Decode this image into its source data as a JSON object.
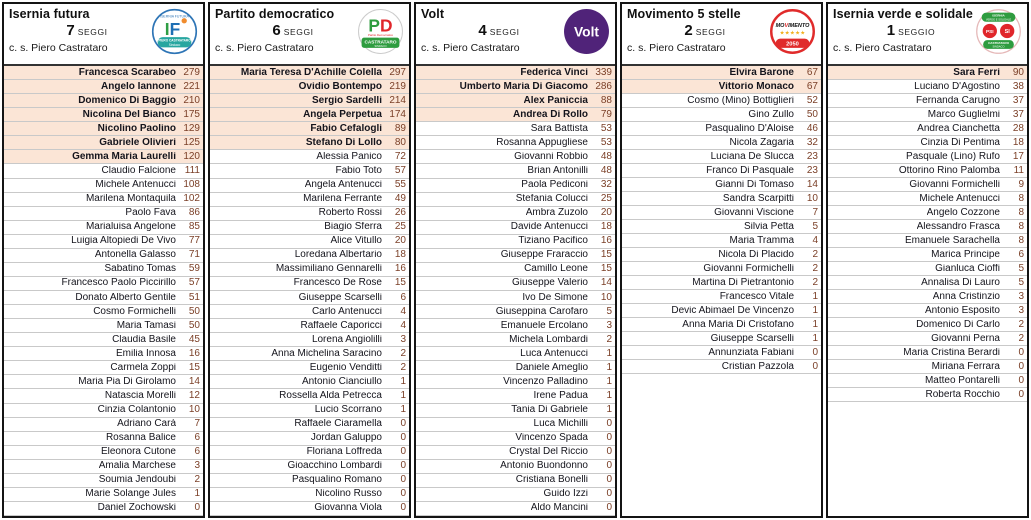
{
  "colors": {
    "elected_highlight": "#FBE5D6",
    "votes_text": "#7b4028",
    "table_border": "#141414",
    "row_separator": "#c9c9c9",
    "if_blue": "#2e75b6",
    "if_green": "#2f9e44",
    "if_teal_band": "#27a6a0",
    "pd_green": "#2e9c3f",
    "pd_red": "#e0262b",
    "volt_purple": "#502379",
    "m5s_red": "#e02b2b",
    "m5s_star_yellow": "#f2b01e",
    "ivs_green": "#2e9c3f",
    "ivs_red": "#e0262b"
  },
  "chart_data": {
    "type": "table",
    "tables": [
      {
        "name": "Isernia futura",
        "seats": "7",
        "seats_label": "SEGGI",
        "coalition": "c. s. Piero Castrataro",
        "elected": 7,
        "logo": {
          "arc_text": "ISERNIA FUTURA",
          "monogram_i": "I",
          "monogram_f": "F",
          "band_line1": "PIERO CASTRATARO",
          "band_line2": "Sindaco"
        },
        "candidates": [
          [
            "Francesca Scarabeo",
            279
          ],
          [
            "Angelo Iannone",
            221
          ],
          [
            "Domenico Di Baggio",
            210
          ],
          [
            "Nicolina Del Bianco",
            175
          ],
          [
            "Nicolino Paolino",
            129
          ],
          [
            "Gabriele Olivieri",
            125
          ],
          [
            "Gemma Maria Laurelli",
            120
          ],
          [
            "Claudio Falcione",
            111
          ],
          [
            "Michele Antenucci",
            108
          ],
          [
            "Marilena Montaquila",
            102
          ],
          [
            "Paolo Fava",
            86
          ],
          [
            "Marialuisa Angelone",
            85
          ],
          [
            "Luigia Altopiedi De Vivo",
            77
          ],
          [
            "Antonella Galasso",
            71
          ],
          [
            "Sabatino Tomas",
            59
          ],
          [
            "Francesco Paolo Piccirillo",
            57
          ],
          [
            "Donato Alberto Gentile",
            51
          ],
          [
            "Cosmo Formichelli",
            50
          ],
          [
            "Maria Tamasi",
            50
          ],
          [
            "Claudia Basile",
            45
          ],
          [
            "Emilia Innosa",
            16
          ],
          [
            "Carmela Zoppi",
            15
          ],
          [
            "Maria Pia Di Girolamo",
            14
          ],
          [
            "Natascia Morelli",
            12
          ],
          [
            "Cinzia Colantonio",
            10
          ],
          [
            "Adriano Carà",
            7
          ],
          [
            "Rosanna Balice",
            6
          ],
          [
            "Eleonora Cutone",
            6
          ],
          [
            "Amalia Marchese",
            3
          ],
          [
            "Soumia Jendoubi",
            2
          ],
          [
            "Marie Solange Jules",
            1
          ],
          [
            "Daniel Zochowski",
            0
          ]
        ]
      },
      {
        "name": "Partito democratico",
        "seats": "6",
        "seats_label": "SEGGI",
        "coalition": "c. s. Piero Castrataro",
        "elected": 6,
        "logo": {
          "p": "P",
          "d": "D",
          "subtitle": "Partito Democratico",
          "band_line1": "CASTRATARO",
          "band_line2": "SINDACO"
        },
        "candidates": [
          [
            "Maria Teresa D'Achille Colella",
            297
          ],
          [
            "Ovidio Bontempo",
            219
          ],
          [
            "Sergio Sardelli",
            214
          ],
          [
            "Angela Perpetua",
            174
          ],
          [
            "Fabio Cefalogli",
            89
          ],
          [
            "Stefano Di Lollo",
            80
          ],
          [
            "Alessia Panico",
            72
          ],
          [
            "Fabio Toto",
            57
          ],
          [
            "Angela Antenucci",
            55
          ],
          [
            "Marilena Ferrante",
            49
          ],
          [
            "Roberto Rossi",
            26
          ],
          [
            "Biagio Sferra",
            25
          ],
          [
            "Alice Vitullo",
            20
          ],
          [
            "Loredana Albertario",
            18
          ],
          [
            "Massimiliano Gennarelli",
            16
          ],
          [
            "Francesco De Rose",
            15
          ],
          [
            "Giuseppe Scarselli",
            6
          ],
          [
            "Carlo Antenucci",
            4
          ],
          [
            "Raffaele Caporicci",
            4
          ],
          [
            "Lorena Angiolilli",
            3
          ],
          [
            "Anna Michelina Saracino",
            2
          ],
          [
            "Eugenio Venditti",
            2
          ],
          [
            "Antonio Cianciullo",
            1
          ],
          [
            "Rossella Alda Petrecca",
            1
          ],
          [
            "Lucio Scorrano",
            1
          ],
          [
            "Raffaele Ciaramella",
            0
          ],
          [
            "Jordan Galuppo",
            0
          ],
          [
            "Floriana Loffreda",
            0
          ],
          [
            "Gioacchino Lombardi",
            0
          ],
          [
            "Pasqualino Romano",
            0
          ],
          [
            "Nicolino Russo",
            0
          ],
          [
            "Giovanna Viola",
            0
          ]
        ]
      },
      {
        "name": "Volt",
        "seats": "4",
        "seats_label": "SEGGI",
        "coalition": "c. s. Piero Castrataro",
        "elected": 4,
        "logo": {
          "text": "Volt"
        },
        "candidates": [
          [
            "Federica Vinci",
            339
          ],
          [
            "Umberto Maria Di Giacomo",
            286
          ],
          [
            "Alex Paniccia",
            88
          ],
          [
            "Andrea Di Rollo",
            79
          ],
          [
            "Sara Battista",
            53
          ],
          [
            "Rosanna Appugliese",
            53
          ],
          [
            "Giovanni Robbio",
            48
          ],
          [
            "Brian Antonilli",
            48
          ],
          [
            "Paola Pediconi",
            32
          ],
          [
            "Stefania Colucci",
            25
          ],
          [
            "Ambra Zuzolo",
            20
          ],
          [
            "Davide Antenucci",
            18
          ],
          [
            "Tiziano Pacifico",
            16
          ],
          [
            "Giuseppe Fraraccio",
            15
          ],
          [
            "Camillo Leone",
            15
          ],
          [
            "Giuseppe Valerio",
            14
          ],
          [
            "Ivo De Simone",
            10
          ],
          [
            "Giuseppina Carofaro",
            5
          ],
          [
            "Emanuele Ercolano",
            3
          ],
          [
            "Michela Lombardi",
            2
          ],
          [
            "Luca Antenucci",
            1
          ],
          [
            "Daniele Ameglio",
            1
          ],
          [
            "Vincenzo Palladino",
            1
          ],
          [
            "Irene Padua",
            1
          ],
          [
            "Tania Di Gabriele",
            1
          ],
          [
            "Luca Michilli",
            0
          ],
          [
            "Vincenzo Spada",
            0
          ],
          [
            "Crystal Del Riccio",
            0
          ],
          [
            "Antonio Buondonno",
            0
          ],
          [
            "Cristiana Bonelli",
            0
          ],
          [
            "Guido Izzi",
            0
          ],
          [
            "Aldo Mancini",
            0
          ]
        ]
      },
      {
        "name": "Movimento 5 stelle",
        "seats": "2",
        "seats_label": "SEGGI",
        "coalition": "c. s. Piero Castrataro",
        "elected": 2,
        "logo": {
          "word_mo": "MO",
          "word_v": "V",
          "word_imento": "IMENTO",
          "stars": "★★★★★",
          "band": "2050"
        },
        "candidates": [
          [
            "Elvira Barone",
            67
          ],
          [
            "Vittorio Monaco",
            67
          ],
          [
            "Cosmo (Mino) Bottiglieri",
            52
          ],
          [
            "Gino Zullo",
            50
          ],
          [
            "Pasqualino D'Aloise",
            46
          ],
          [
            "Nicola Zagaria",
            32
          ],
          [
            "Luciana De Slucca",
            23
          ],
          [
            "Franco Di Pasquale",
            23
          ],
          [
            "Gianni Di Tomaso",
            14
          ],
          [
            "Sandra Scarpitti",
            10
          ],
          [
            "Giovanni Viscione",
            7
          ],
          [
            "Silvia Petta",
            5
          ],
          [
            "Maria Tramma",
            4
          ],
          [
            "Nicola Di Placido",
            2
          ],
          [
            "Giovanni Formichelli",
            2
          ],
          [
            "Martina Di Pietrantonio",
            2
          ],
          [
            "Francesco Vitale",
            1
          ],
          [
            "Devic Abimael De Vincenzo",
            1
          ],
          [
            "Anna Maria Di Cristofano",
            1
          ],
          [
            "Giuseppe Scarselli",
            1
          ],
          [
            "Annunziata Fabiani",
            0
          ],
          [
            "Cristian Pazzola",
            0
          ]
        ]
      },
      {
        "name": "Isernia verde e solidale",
        "seats": "1",
        "seats_label": "SEGGIO",
        "coalition": "c. s. Piero Castrataro",
        "elected": 1,
        "logo": {
          "arc_text1": "ISERNIA",
          "arc_text2": "VERDE E SOLIDALE",
          "psi": "PSI",
          "si": "SI",
          "band_line1": "CASTRATARO",
          "band_line2": "SINDACO"
        },
        "candidates": [
          [
            "Sara Ferri",
            90
          ],
          [
            "Luciano D'Agostino",
            38
          ],
          [
            "Fernanda Carugno",
            37
          ],
          [
            "Marco Guglielmi",
            37
          ],
          [
            "Andrea Cianchetta",
            28
          ],
          [
            "Cinzia Di Pentima",
            18
          ],
          [
            "Pasquale (Lino) Rufo",
            17
          ],
          [
            "Ottorino Rino Palomba",
            11
          ],
          [
            "Giovanni Formichelli",
            9
          ],
          [
            "Michele Antenucci",
            8
          ],
          [
            "Angelo Cozzone",
            8
          ],
          [
            "Alessandro Frasca",
            8
          ],
          [
            "Emanuele Sarachella",
            8
          ],
          [
            "Marica Principe",
            6
          ],
          [
            "Gianluca Cioffi",
            5
          ],
          [
            "Annalisa Di Lauro",
            5
          ],
          [
            "Anna Cristinzio",
            3
          ],
          [
            "Antonio Esposito",
            3
          ],
          [
            "Domenico Di Carlo",
            2
          ],
          [
            "Giovanni Perna",
            2
          ],
          [
            "Maria Cristina Berardi",
            0
          ],
          [
            "Miriana Ferrara",
            0
          ],
          [
            "Matteo Pontarelli",
            0
          ],
          [
            "Roberta Rocchio",
            0
          ]
        ]
      }
    ]
  }
}
